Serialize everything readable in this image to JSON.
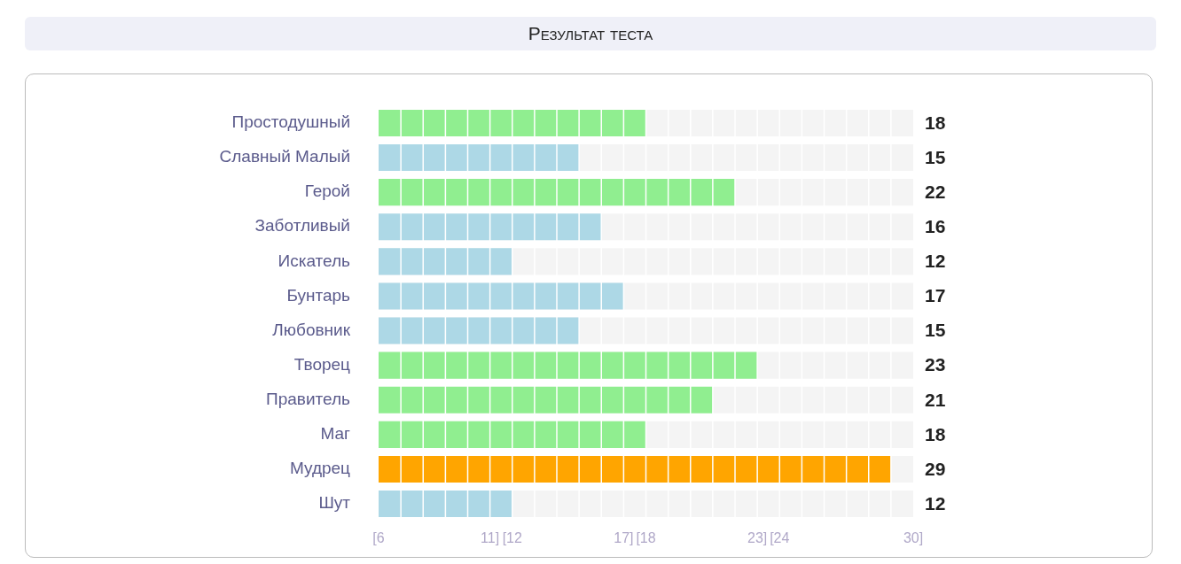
{
  "chart_data": {
    "type": "bar",
    "orientation": "horizontal",
    "title": "Результат теста",
    "categories": [
      "Простодушный",
      "Славный Малый",
      "Герой",
      "Заботливый",
      "Искатель",
      "Бунтарь",
      "Любовник",
      "Творец",
      "Правитель",
      "Маг",
      "Мудрец",
      "Шут"
    ],
    "values": [
      18,
      15,
      22,
      16,
      12,
      17,
      15,
      23,
      21,
      18,
      29,
      12
    ],
    "colors": [
      "#90ee90",
      "#add8e6",
      "#90ee90",
      "#add8e6",
      "#add8e6",
      "#add8e6",
      "#add8e6",
      "#90ee90",
      "#90ee90",
      "#90ee90",
      "#ffa500",
      "#add8e6"
    ],
    "xlim": [
      6,
      30
    ],
    "xticks": [
      {
        "value": 6,
        "label": "[6"
      },
      {
        "value": 7,
        "label": null
      },
      {
        "value": 8,
        "label": null
      },
      {
        "value": 9,
        "label": null
      },
      {
        "value": 10,
        "label": null
      },
      {
        "value": 11,
        "label": "11]"
      },
      {
        "value": 12,
        "label": "[12"
      },
      {
        "value": 13,
        "label": null
      },
      {
        "value": 14,
        "label": null
      },
      {
        "value": 15,
        "label": null
      },
      {
        "value": 16,
        "label": null
      },
      {
        "value": 17,
        "label": "17]"
      },
      {
        "value": 18,
        "label": "[18"
      },
      {
        "value": 19,
        "label": null
      },
      {
        "value": 20,
        "label": null
      },
      {
        "value": 21,
        "label": null
      },
      {
        "value": 22,
        "label": null
      },
      {
        "value": 23,
        "label": "23]"
      },
      {
        "value": 24,
        "label": "[24"
      },
      {
        "value": 25,
        "label": null
      },
      {
        "value": 26,
        "label": null
      },
      {
        "value": 27,
        "label": null
      },
      {
        "value": 28,
        "label": null
      },
      {
        "value": 29,
        "label": null
      },
      {
        "value": 30,
        "label": "30]"
      }
    ],
    "grid": "x",
    "data_labels": true,
    "legend": false
  }
}
